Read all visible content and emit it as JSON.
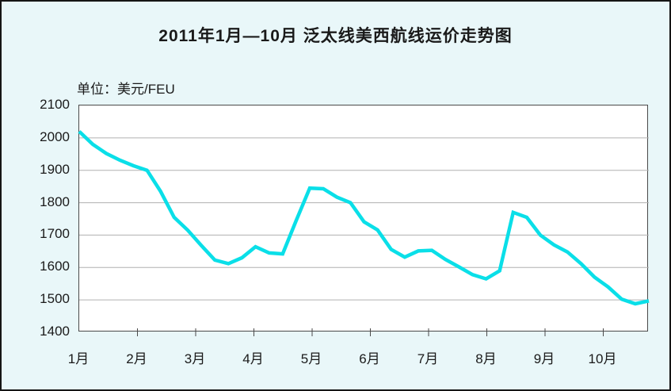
{
  "chart": {
    "title": "2011年1月—10月 泛太线美西航线运价走势图",
    "unit_label": "单位：美元/FEU"
  },
  "chart_data": {
    "type": "line",
    "title": "2011年1月—10月 泛太线美西航线运价走势图",
    "ylabel": "美元/FEU",
    "xlabel": "",
    "ylim": [
      1400,
      2100
    ],
    "y_ticks": [
      2100,
      2000,
      1900,
      1800,
      1700,
      1600,
      1500,
      1400
    ],
    "categories": [
      "1月",
      "2月",
      "3月",
      "4月",
      "5月",
      "6月",
      "7月",
      "8月",
      "9月",
      "10月"
    ],
    "grid": true,
    "legend_position": "none",
    "series": [
      {
        "name": "泛太线美西航线运价(美元/FEU)",
        "x_unit": "week",
        "values": [
          2020,
          1980,
          1952,
          1931,
          1914,
          1900,
          1835,
          1755,
          1715,
          1668,
          1623,
          1612,
          1630,
          1664,
          1645,
          1642,
          1745,
          1845,
          1843,
          1817,
          1800,
          1741,
          1716,
          1656,
          1632,
          1651,
          1653,
          1625,
          1602,
          1578,
          1565,
          1590,
          1770,
          1755,
          1700,
          1670,
          1648,
          1612,
          1570,
          1540,
          1502,
          1488,
          1497
        ]
      }
    ],
    "colors": {
      "line": "#0adfe8",
      "gridline": "#b0b0b0",
      "plot_border": "#4a4a4a",
      "plot_bg": "#ffffff",
      "page_bg": "#e9f7f9",
      "text": "#1a1a1a"
    }
  }
}
